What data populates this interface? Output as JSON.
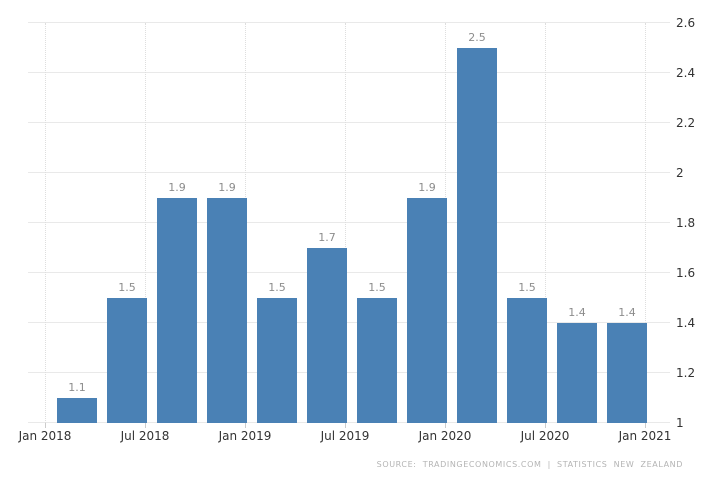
{
  "chart_data": {
    "type": "bar",
    "title": "",
    "xlabel": "",
    "ylabel": "",
    "categories": [
      "2018-Q1",
      "2018-Q2",
      "2018-Q3",
      "2018-Q4",
      "2019-Q1",
      "2019-Q2",
      "2019-Q3",
      "2019-Q4",
      "2020-Q1",
      "2020-Q2",
      "2020-Q3",
      "2020-Q4"
    ],
    "values": [
      1.1,
      1.5,
      1.9,
      1.9,
      1.5,
      1.7,
      1.5,
      1.9,
      2.5,
      1.5,
      1.4,
      1.4
    ],
    "bar_labels": [
      "1.1",
      "1.5",
      "1.9",
      "1.9",
      "1.5",
      "1.7",
      "1.5",
      "1.9",
      "2.5",
      "1.5",
      "1.4",
      "1.4"
    ],
    "x_tick_labels": [
      "Jan 2018",
      "Jul 2018",
      "Jan 2019",
      "Jul 2019",
      "Jan 2020",
      "Jul 2020",
      "Jan 2021"
    ],
    "y_tick_labels": [
      "1",
      "1.2",
      "1.4",
      "1.6",
      "1.8",
      "2",
      "2.2",
      "2.4",
      "2.6"
    ],
    "ylim": [
      1,
      2.6
    ],
    "grid": true,
    "legend_position": "none",
    "y_axis_side": "right",
    "bar_color": "#4a81b5",
    "value_label_color": "#8c8c8c",
    "axis_label_color": "#333333",
    "gridline_color": "#e9e9e9"
  },
  "footer": {
    "source_text": "SOURCE: TRADINGECONOMICS.COM | STATISTICS NEW ZEALAND"
  }
}
